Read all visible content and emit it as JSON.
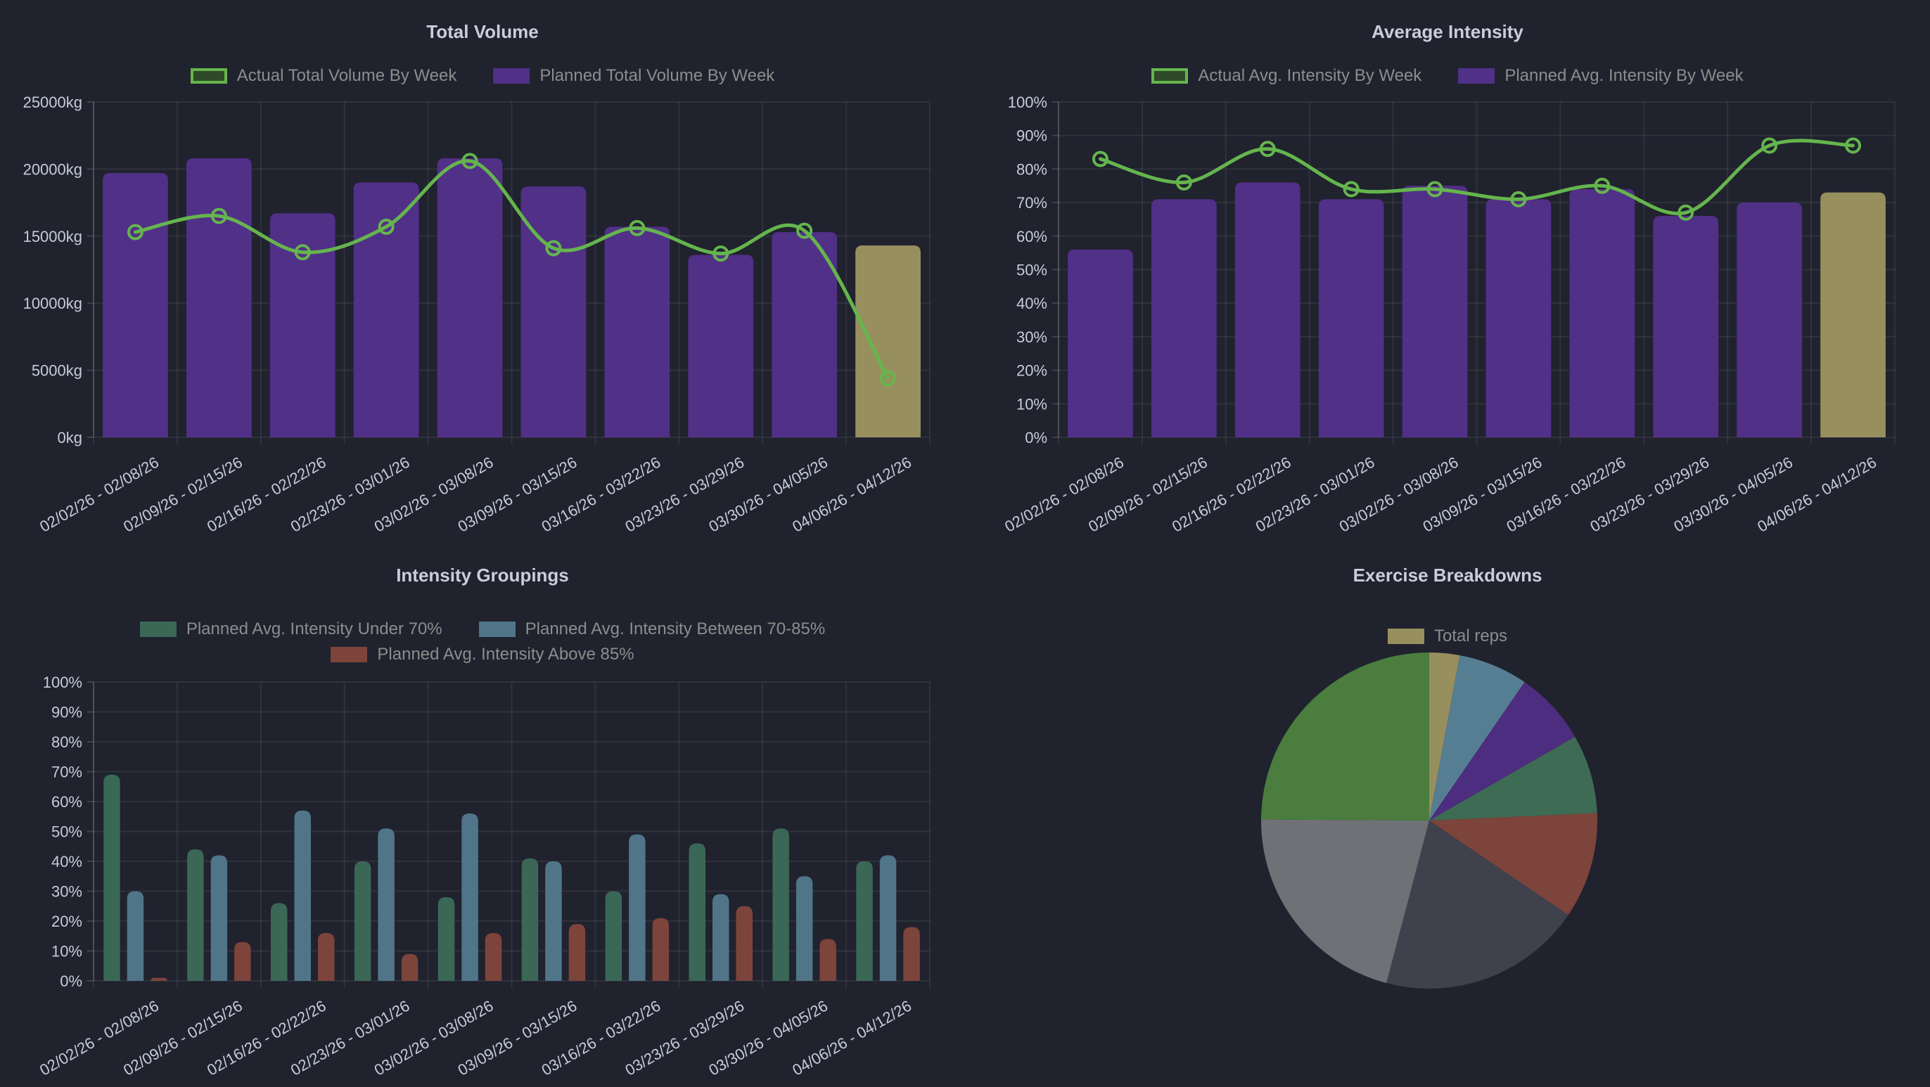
{
  "theme": {
    "background": "#20222e",
    "title_color": "#ccccdc",
    "axis_text_color": "#c6ccda",
    "legend_text_color": "#8d8d8d",
    "gridline_color": "rgba(255,255,255,0.07)",
    "axis_line_color": "rgba(255,255,255,0.14)"
  },
  "chart_data": [
    {
      "id": "total-volume",
      "type": "bar+line",
      "title": "Total Volume",
      "ylim": [
        0,
        25000
      ],
      "y_ticks": [
        "0kg",
        "5000kg",
        "10000kg",
        "15000kg",
        "20000kg",
        "25000kg"
      ],
      "grid": true,
      "legend_position": "top",
      "categories": [
        "02/02/26 - 02/08/26",
        "02/09/26 - 02/15/26",
        "02/16/26 - 02/22/26",
        "02/23/26 - 03/01/26",
        "03/02/26 - 03/08/26",
        "03/09/26 - 03/15/26",
        "03/16/26 - 03/22/26",
        "03/23/26 - 03/29/26",
        "03/30/26 - 04/05/26",
        "04/06/26 - 04/12/26"
      ],
      "legend": [
        {
          "label": "Actual Total Volume By Week",
          "swatch": "outline",
          "color": "#65b54d",
          "fill": "#2f4a28"
        },
        {
          "label": "Planned Total Volume By Week",
          "swatch": "solid",
          "color": "#513087"
        }
      ],
      "series": [
        {
          "name": "Planned Total Volume By Week",
          "type": "bar",
          "color": "#513087",
          "last_bar_color": "#978f5e",
          "values": [
            19700,
            20800,
            16700,
            19000,
            20800,
            18700,
            15700,
            13600,
            15300,
            14300
          ]
        },
        {
          "name": "Actual Total Volume By Week",
          "type": "line",
          "color": "#65b54d",
          "values": [
            15300,
            16500,
            13800,
            15700,
            20600,
            14100,
            15600,
            13700,
            15400,
            4400
          ]
        }
      ]
    },
    {
      "id": "average-intensity",
      "type": "bar+line",
      "title": "Average Intensity",
      "ylim": [
        0,
        100
      ],
      "y_ticks": [
        "0%",
        "10%",
        "20%",
        "30%",
        "40%",
        "50%",
        "60%",
        "70%",
        "80%",
        "90%",
        "100%"
      ],
      "grid": true,
      "legend_position": "top",
      "categories": [
        "02/02/26 - 02/08/26",
        "02/09/26 - 02/15/26",
        "02/16/26 - 02/22/26",
        "02/23/26 - 03/01/26",
        "03/02/26 - 03/08/26",
        "03/09/26 - 03/15/26",
        "03/16/26 - 03/22/26",
        "03/23/26 - 03/29/26",
        "03/30/26 - 04/05/26",
        "04/06/26 - 04/12/26"
      ],
      "legend": [
        {
          "label": "Actual Avg. Intensity By Week",
          "swatch": "outline",
          "color": "#65b54d",
          "fill": "#2f4a28"
        },
        {
          "label": "Planned Avg. Intensity By Week",
          "swatch": "solid",
          "color": "#513087"
        }
      ],
      "series": [
        {
          "name": "Planned Avg. Intensity By Week",
          "type": "bar",
          "color": "#513087",
          "last_bar_color": "#978f5e",
          "values": [
            56,
            71,
            76,
            71,
            75,
            71,
            74,
            66,
            70,
            73
          ]
        },
        {
          "name": "Actual Avg. Intensity By Week",
          "type": "line",
          "color": "#65b54d",
          "values": [
            83,
            76,
            86,
            74,
            74,
            71,
            75,
            67,
            87,
            87
          ]
        }
      ]
    },
    {
      "id": "intensity-groupings",
      "type": "grouped-bar",
      "title": "Intensity Groupings",
      "ylim": [
        0,
        100
      ],
      "y_ticks": [
        "0%",
        "10%",
        "20%",
        "30%",
        "40%",
        "50%",
        "60%",
        "70%",
        "80%",
        "90%",
        "100%"
      ],
      "grid": true,
      "legend_position": "top",
      "categories": [
        "02/02/26 - 02/08/26",
        "02/09/26 - 02/15/26",
        "02/16/26 - 02/22/26",
        "02/23/26 - 03/01/26",
        "03/02/26 - 03/08/26",
        "03/09/26 - 03/15/26",
        "03/16/26 - 03/22/26",
        "03/23/26 - 03/29/26",
        "03/30/26 - 04/05/26",
        "04/06/26 - 04/12/26"
      ],
      "legend": [
        {
          "label": "Planned Avg. Intensity Under 70%",
          "swatch": "solid",
          "color": "#3b6756"
        },
        {
          "label": "Planned Avg. Intensity Between 70-85%",
          "swatch": "solid",
          "color": "#507589"
        },
        {
          "label": "Planned Avg. Intensity Above 85%",
          "swatch": "solid",
          "color": "#7d443c"
        }
      ],
      "series": [
        {
          "name": "Planned Avg. Intensity Under 70%",
          "type": "bar",
          "color": "#3b6756",
          "values": [
            69,
            44,
            26,
            40,
            28,
            41,
            30,
            46,
            51,
            40
          ]
        },
        {
          "name": "Planned Avg. Intensity Between 70-85%",
          "type": "bar",
          "color": "#507589",
          "values": [
            30,
            42,
            57,
            51,
            56,
            40,
            49,
            29,
            35,
            42
          ]
        },
        {
          "name": "Planned Avg. Intensity Above 85%",
          "type": "bar",
          "color": "#7d443c",
          "values": [
            1,
            13,
            16,
            9,
            16,
            19,
            21,
            25,
            14,
            18
          ]
        }
      ]
    },
    {
      "id": "exercise-breakdowns",
      "type": "pie",
      "title": "Exercise Breakdowns",
      "legend_position": "top",
      "legend": [
        {
          "label": "Total reps",
          "swatch": "solid",
          "color": "#978f5e"
        }
      ],
      "slices": [
        {
          "name": "slice-tan",
          "percent": 2.9,
          "color": "#978f5e"
        },
        {
          "name": "slice-steel-blue",
          "percent": 6.7,
          "color": "#567e92"
        },
        {
          "name": "slice-purple",
          "percent": 7.1,
          "color": "#4d2d80"
        },
        {
          "name": "slice-teal-green",
          "percent": 7.6,
          "color": "#3e6b54"
        },
        {
          "name": "slice-brick-red",
          "percent": 10.2,
          "color": "#7d443c"
        },
        {
          "name": "slice-charcoal",
          "percent": 19.6,
          "color": "#3f414d"
        },
        {
          "name": "slice-gray",
          "percent": 21.0,
          "color": "#6f7177"
        },
        {
          "name": "slice-green",
          "percent": 24.9,
          "color": "#4a7d3e"
        }
      ]
    }
  ]
}
